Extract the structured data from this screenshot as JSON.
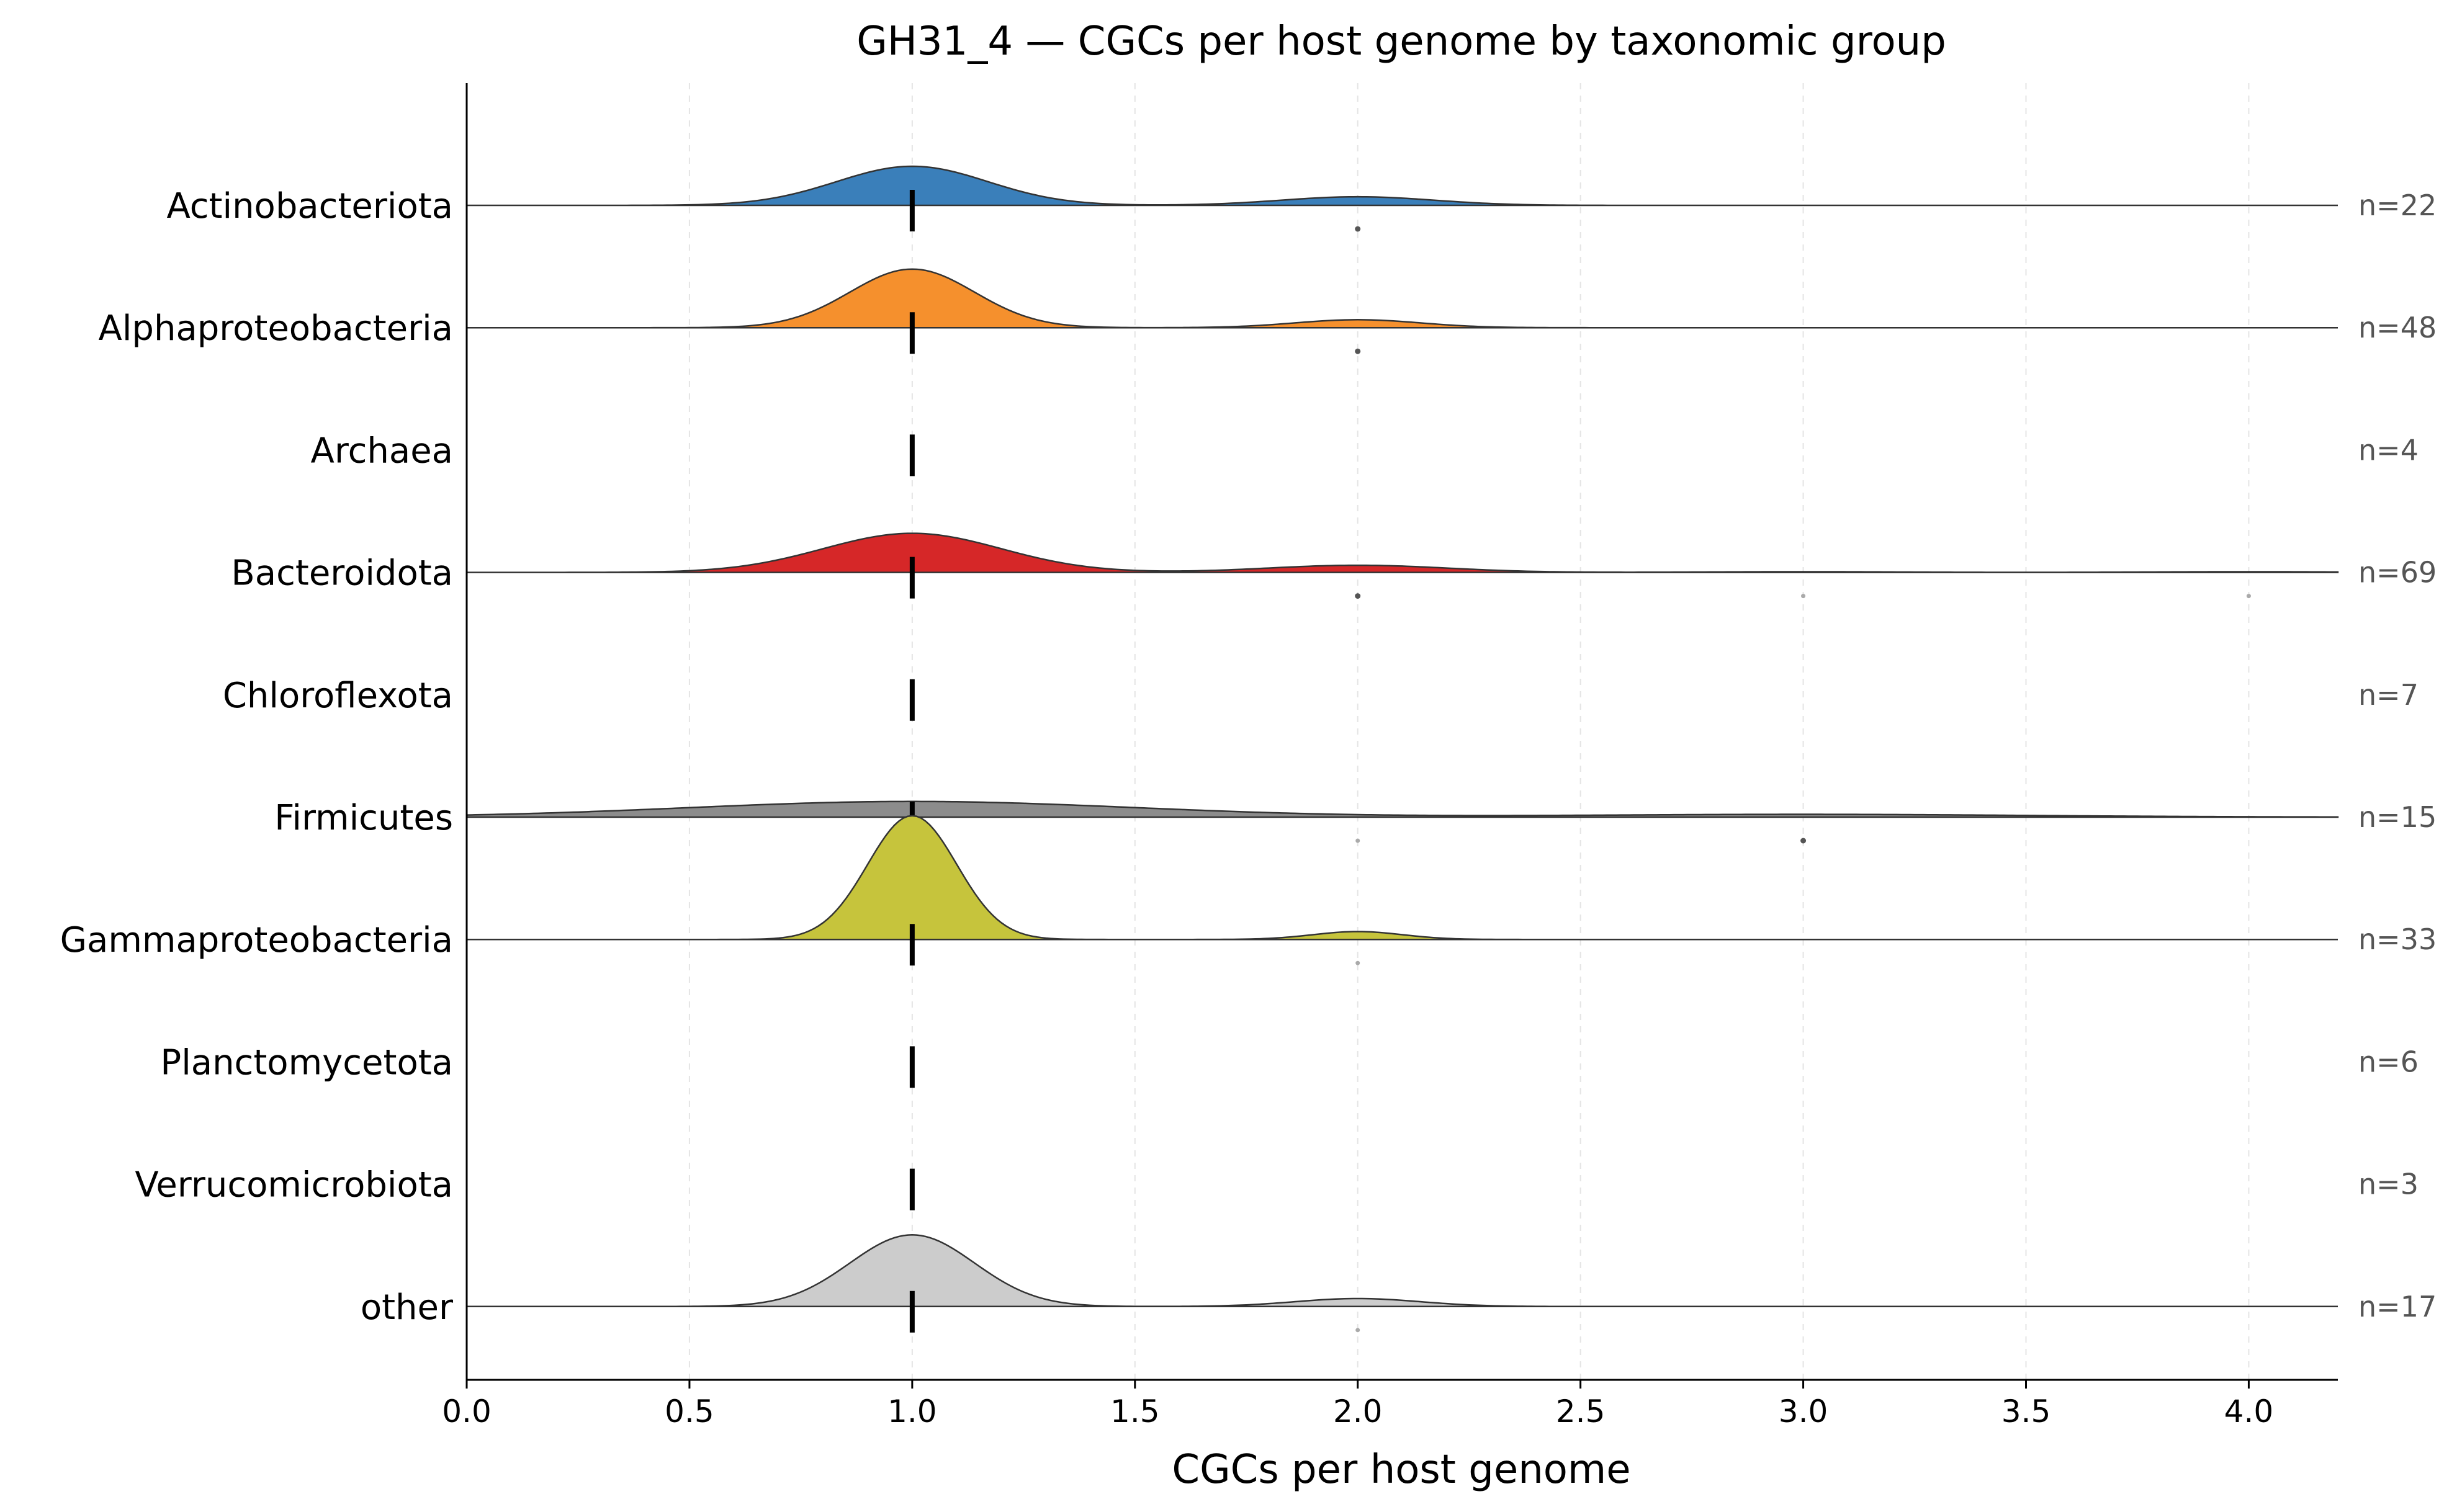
{
  "chart_data": {
    "type": "ridgeline",
    "title": "GH31_4 — CGCs per host genome by taxonomic group",
    "xlabel": "CGCs per host genome",
    "ylabel": "",
    "xlim": [
      0,
      4.2
    ],
    "xticks": [
      "0.0",
      "0.5",
      "1.0",
      "1.5",
      "2.0",
      "2.5",
      "3.0",
      "3.5",
      "4.0"
    ],
    "grid": "vertical dashed",
    "median_marker": 1.0,
    "groups": [
      {
        "name": "Actinobacteriota",
        "n_label": "n=22",
        "color": "#3a7fba",
        "components": [
          {
            "mu": 1.0,
            "w": 0.82,
            "sd": 0.17
          },
          {
            "mu": 2.0,
            "w": 0.18,
            "sd": 0.17
          }
        ],
        "height": 0.3,
        "outliers": [
          {
            "x": 2.0,
            "strong": true
          }
        ]
      },
      {
        "name": "Alphaproteobacteria",
        "n_label": "n=48",
        "color": "#f5902d",
        "components": [
          {
            "mu": 1.0,
            "w": 0.88,
            "sd": 0.14
          },
          {
            "mu": 2.0,
            "w": 0.12,
            "sd": 0.14
          }
        ],
        "height": 0.45,
        "outliers": [
          {
            "x": 2.0,
            "strong": true
          }
        ]
      },
      {
        "name": "Archaea",
        "n_label": "n=4",
        "color": "#2ca02c",
        "components": [],
        "height": 0,
        "outliers": []
      },
      {
        "name": "Bacteroidota",
        "n_label": "n=69",
        "color": "#d62728",
        "components": [
          {
            "mu": 1.0,
            "w": 0.82,
            "sd": 0.2
          },
          {
            "mu": 2.0,
            "w": 0.15,
            "sd": 0.2
          },
          {
            "mu": 3.0,
            "w": 0.015,
            "sd": 0.2
          },
          {
            "mu": 4.0,
            "w": 0.015,
            "sd": 0.2
          }
        ],
        "height": 0.3,
        "outliers": [
          {
            "x": 2.0,
            "strong": true
          },
          {
            "x": 3.0,
            "strong": false
          },
          {
            "x": 4.0,
            "strong": false
          }
        ]
      },
      {
        "name": "Chloroflexota",
        "n_label": "n=7",
        "color": "#9467bd",
        "components": [],
        "height": 0,
        "outliers": []
      },
      {
        "name": "Firmicutes",
        "n_label": "n=15",
        "color": "#8c8c8c",
        "components": [
          {
            "mu": 1.0,
            "w": 0.85,
            "sd": 0.5
          },
          {
            "mu": 3.0,
            "w": 0.15,
            "sd": 0.5
          }
        ],
        "height": 0.12,
        "outliers": [
          {
            "x": 2.0,
            "strong": false
          },
          {
            "x": 3.0,
            "strong": true
          }
        ]
      },
      {
        "name": "Gammaproteobacteria",
        "n_label": "n=33",
        "color": "#c6c43c",
        "components": [
          {
            "mu": 1.0,
            "w": 0.94,
            "sd": 0.1
          },
          {
            "mu": 2.0,
            "w": 0.06,
            "sd": 0.1
          }
        ],
        "height": 0.95,
        "outliers": [
          {
            "x": 2.0,
            "strong": false
          }
        ]
      },
      {
        "name": "Planctomycetota",
        "n_label": "n=6",
        "color": "#17becf",
        "components": [],
        "height": 0,
        "outliers": []
      },
      {
        "name": "Verrucomicrobiota",
        "n_label": "n=3",
        "color": "#e377c2",
        "components": [],
        "height": 0,
        "outliers": []
      },
      {
        "name": "other",
        "n_label": "n=17",
        "color": "#cccccc",
        "components": [
          {
            "mu": 1.0,
            "w": 0.9,
            "sd": 0.14
          },
          {
            "mu": 2.0,
            "w": 0.1,
            "sd": 0.14
          }
        ],
        "height": 0.55,
        "outliers": [
          {
            "x": 2.0,
            "strong": false
          }
        ]
      }
    ]
  }
}
